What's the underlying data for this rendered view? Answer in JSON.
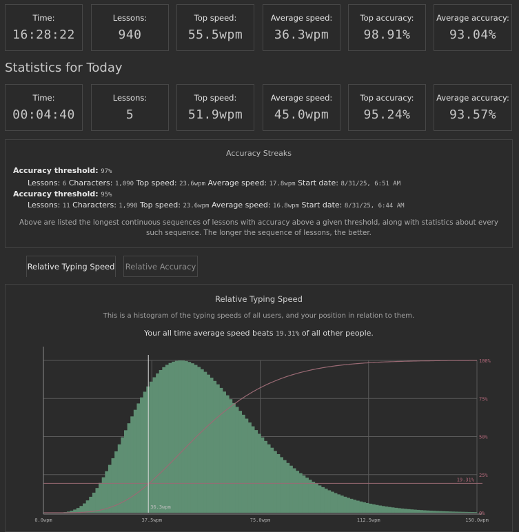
{
  "alltime_stats": [
    {
      "label": "Time:",
      "value": "16:28:22"
    },
    {
      "label": "Lessons:",
      "value": "940"
    },
    {
      "label": "Top speed:",
      "value": "55.5wpm"
    },
    {
      "label": "Average speed:",
      "value": "36.3wpm"
    },
    {
      "label": "Top accuracy:",
      "value": "98.91%"
    },
    {
      "label": "Average accuracy:",
      "value": "93.04%"
    }
  ],
  "today": {
    "title": "Statistics for Today",
    "stats": [
      {
        "label": "Time:",
        "value": "00:04:40"
      },
      {
        "label": "Lessons:",
        "value": "5"
      },
      {
        "label": "Top speed:",
        "value": "51.9wpm"
      },
      {
        "label": "Average speed:",
        "value": "45.0wpm"
      },
      {
        "label": "Top accuracy:",
        "value": "95.24%"
      },
      {
        "label": "Average accuracy:",
        "value": "93.57%"
      }
    ]
  },
  "streaks": {
    "title": "Accuracy Streaks",
    "items": [
      {
        "threshold_label": "Accuracy threshold:",
        "threshold": "97%",
        "lessons_label": "Lessons:",
        "lessons": "6",
        "characters_label": "Characters:",
        "characters": "1,090",
        "top_speed_label": "Top speed:",
        "top_speed": "23.6wpm",
        "avg_speed_label": "Average speed:",
        "avg_speed": "17.8wpm",
        "start_label": "Start date:",
        "start": "8/31/25, 6:51 AM"
      },
      {
        "threshold_label": "Accuracy threshold:",
        "threshold": "95%",
        "lessons_label": "Lessons:",
        "lessons": "11",
        "characters_label": "Characters:",
        "characters": "1,998",
        "top_speed_label": "Top speed:",
        "top_speed": "23.6wpm",
        "avg_speed_label": "Average speed:",
        "avg_speed": "16.8wpm",
        "start_label": "Start date:",
        "start": "8/31/25, 6:44 AM"
      }
    ],
    "note": "Above are listed the longest continuous sequences of lessons with accuracy above a given threshold, along with statistics about every such sequence. The longer the sequence of lessons, the better."
  },
  "tabs": [
    {
      "label": "Relative Typing Speed",
      "active": true
    },
    {
      "label": "Relative Accuracy",
      "active": false
    }
  ],
  "chart_panel": {
    "title": "Relative Typing Speed",
    "description": "This is a histogram of the typing speeds of all users, and your position in relation to them.",
    "beat_prefix": "Your all time average speed beats ",
    "beat_value": "19.31%",
    "beat_suffix": " of all other people."
  },
  "colors": {
    "histogram": "#5f8f73",
    "cumulative": "#9a6a74",
    "grid": "#5a5a5a",
    "marker": "#d8d8d8",
    "pct_label": "#b3687a"
  },
  "chart_data": {
    "type": "area",
    "x_tick_labels": [
      "0.0wpm",
      "37.5wpm",
      "75.0wpm",
      "112.5wpm",
      "150.0wpm"
    ],
    "x_ticks": [
      0,
      37.5,
      75,
      112.5,
      150
    ],
    "xlim": [
      0,
      150
    ],
    "y_right_tick_labels": [
      "0%",
      "25%",
      "50%",
      "75%",
      "100%"
    ],
    "y_right_ticks": [
      0,
      25,
      50,
      75,
      100
    ],
    "histogram_peak_x": 47.5,
    "your_speed": 36.3,
    "your_speed_label": "36.3wpm",
    "your_percentile": 19.31,
    "your_percentile_label": "19.31%",
    "grid": true
  }
}
